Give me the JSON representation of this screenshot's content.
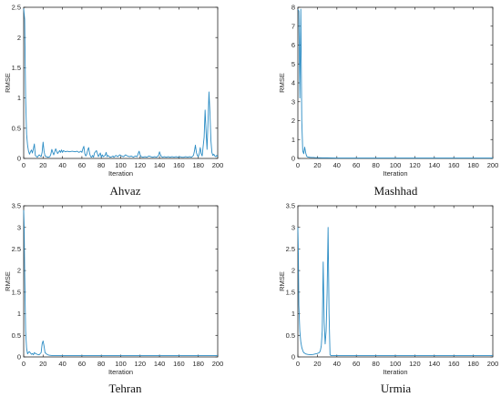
{
  "colors": {
    "line": "#2b8cc4",
    "axis": "#262626"
  },
  "chart_data": [
    {
      "type": "line",
      "title": "Ahvaz",
      "xlabel": "Iteration",
      "ylabel": "RMSE",
      "xlim": [
        0,
        200
      ],
      "ylim": [
        0,
        2.5
      ],
      "xticks": [
        "0",
        "20",
        "40",
        "60",
        "80",
        "100",
        "120",
        "140",
        "160",
        "180",
        "200"
      ],
      "yticks": [
        "0",
        "0.5",
        "1",
        "1.5",
        "2",
        "2.5"
      ],
      "grid": false,
      "series": [
        {
          "x": [
            0,
            1,
            2,
            3,
            4,
            5,
            6,
            7,
            8,
            9,
            10,
            11,
            12,
            14,
            15,
            16,
            18,
            19,
            20,
            21,
            22,
            25,
            27,
            28,
            29,
            30,
            31,
            33,
            34,
            35,
            37,
            38,
            39,
            40,
            41,
            43,
            45,
            47,
            50,
            53,
            55,
            57,
            59,
            60,
            61,
            62,
            63,
            64,
            65,
            66,
            67,
            68,
            69,
            70,
            71,
            72,
            73,
            75,
            77,
            79,
            80,
            81,
            82,
            84,
            85,
            86,
            87,
            89,
            91,
            92,
            93,
            95,
            97,
            99,
            101,
            103,
            105,
            107,
            109,
            111,
            113,
            115,
            117,
            118,
            119,
            120,
            121,
            123,
            125,
            127,
            129,
            131,
            133,
            135,
            137,
            139,
            140,
            141,
            142,
            143,
            145,
            147,
            149,
            151,
            153,
            155,
            157,
            159,
            161,
            163,
            165,
            167,
            169,
            171,
            173,
            175,
            176,
            177,
            178,
            179,
            180,
            181,
            182,
            183,
            184,
            185,
            186,
            187,
            188,
            189,
            190,
            191,
            192,
            193,
            194,
            195,
            196,
            197,
            198,
            199,
            200
          ],
          "y": [
            2.48,
            2.3,
            1.0,
            0.4,
            0.22,
            0.12,
            0.07,
            0.11,
            0.14,
            0.09,
            0.16,
            0.24,
            0.05,
            0.02,
            0.04,
            0.06,
            0.03,
            0.1,
            0.27,
            0.12,
            0.04,
            0.02,
            0.03,
            0.07,
            0.15,
            0.1,
            0.06,
            0.16,
            0.12,
            0.08,
            0.13,
            0.1,
            0.14,
            0.1,
            0.13,
            0.11,
            0.12,
            0.11,
            0.12,
            0.11,
            0.12,
            0.1,
            0.12,
            0.1,
            0.16,
            0.2,
            0.08,
            0.04,
            0.07,
            0.14,
            0.18,
            0.08,
            0.03,
            0.02,
            0.05,
            0.02,
            0.09,
            0.13,
            0.03,
            0.09,
            0.02,
            0.06,
            0.03,
            0.05,
            0.1,
            0.03,
            0.05,
            0.02,
            0.03,
            0.04,
            0.02,
            0.05,
            0.03,
            0.06,
            0.04,
            0.03,
            0.06,
            0.04,
            0.03,
            0.04,
            0.02,
            0.04,
            0.03,
            0.08,
            0.12,
            0.06,
            0.03,
            0.02,
            0.03,
            0.02,
            0.04,
            0.03,
            0.02,
            0.03,
            0.02,
            0.05,
            0.11,
            0.06,
            0.03,
            0.02,
            0.03,
            0.02,
            0.03,
            0.02,
            0.03,
            0.02,
            0.03,
            0.02,
            0.03,
            0.02,
            0.02,
            0.03,
            0.02,
            0.03,
            0.02,
            0.05,
            0.12,
            0.22,
            0.1,
            0.05,
            0.03,
            0.08,
            0.18,
            0.08,
            0.04,
            0.2,
            0.35,
            0.8,
            0.45,
            0.15,
            0.6,
            1.1,
            0.75,
            0.3,
            0.1,
            0.05,
            0.07,
            0.04,
            0.03,
            0.05,
            0.03
          ]
        }
      ]
    },
    {
      "type": "line",
      "title": "Mashhad",
      "xlabel": "Iteration",
      "ylabel": "RMSE",
      "xlim": [
        0,
        200
      ],
      "ylim": [
        0,
        8
      ],
      "xticks": [
        "0",
        "20",
        "40",
        "60",
        "80",
        "100",
        "120",
        "140",
        "160",
        "180",
        "200"
      ],
      "yticks": [
        "0",
        "1",
        "2",
        "3",
        "4",
        "5",
        "6",
        "7",
        "8"
      ],
      "grid": false,
      "series": [
        {
          "x": [
            0,
            1,
            2,
            3,
            4,
            5,
            6,
            7,
            8,
            9,
            10,
            12,
            14,
            16,
            18,
            20,
            25,
            30,
            40,
            60,
            80,
            100,
            120,
            140,
            160,
            180,
            200
          ],
          "y": [
            7.9,
            7.8,
            3.2,
            7.9,
            2.0,
            0.4,
            0.25,
            0.6,
            0.3,
            0.12,
            0.08,
            0.06,
            0.05,
            0.05,
            0.04,
            0.04,
            0.03,
            0.03,
            0.02,
            0.02,
            0.02,
            0.02,
            0.02,
            0.02,
            0.02,
            0.02,
            0.02
          ]
        }
      ]
    },
    {
      "type": "line",
      "title": "Tehran",
      "xlabel": "Iteration",
      "ylabel": "RMSE",
      "xlim": [
        0,
        200
      ],
      "ylim": [
        0,
        3.5
      ],
      "xticks": [
        "0",
        "20",
        "40",
        "60",
        "80",
        "100",
        "120",
        "140",
        "160",
        "180",
        "200"
      ],
      "yticks": [
        "0",
        "0.5",
        "1",
        "1.5",
        "2",
        "2.5",
        "3",
        "3.5"
      ],
      "grid": false,
      "series": [
        {
          "x": [
            0,
            0.5,
            1,
            2,
            3,
            4,
            5,
            6,
            7,
            8,
            9,
            10,
            11,
            12,
            14,
            16,
            18,
            19,
            20,
            21,
            22,
            24,
            26,
            30,
            40,
            60,
            80,
            100,
            120,
            140,
            160,
            180,
            200
          ],
          "y": [
            3.4,
            3.0,
            2.0,
            0.6,
            0.2,
            0.07,
            0.11,
            0.12,
            0.09,
            0.06,
            0.08,
            0.05,
            0.1,
            0.08,
            0.06,
            0.05,
            0.1,
            0.3,
            0.37,
            0.25,
            0.1,
            0.06,
            0.04,
            0.03,
            0.03,
            0.03,
            0.03,
            0.03,
            0.03,
            0.03,
            0.03,
            0.03,
            0.03
          ]
        }
      ]
    },
    {
      "type": "line",
      "title": "Urmia",
      "xlabel": "Iteration",
      "ylabel": "RMSE",
      "xlim": [
        0,
        200
      ],
      "ylim": [
        0,
        3.5
      ],
      "xticks": [
        "0",
        "20",
        "40",
        "60",
        "80",
        "100",
        "120",
        "140",
        "160",
        "180",
        "200"
      ],
      "yticks": [
        "0",
        "0.5",
        "1",
        "1.5",
        "2",
        "2.5",
        "3",
        "3.5"
      ],
      "grid": false,
      "series": [
        {
          "x": [
            0,
            0.5,
            1,
            2,
            3,
            4,
            5,
            6,
            8,
            10,
            12,
            14,
            16,
            18,
            20,
            22,
            23,
            24,
            25,
            26,
            27,
            28,
            29,
            30,
            31,
            32,
            33,
            34,
            40,
            60,
            80,
            100,
            120,
            140,
            160,
            180,
            200
          ],
          "y": [
            3.0,
            2.4,
            1.2,
            0.6,
            0.35,
            0.22,
            0.15,
            0.1,
            0.07,
            0.06,
            0.055,
            0.055,
            0.06,
            0.07,
            0.08,
            0.1,
            0.14,
            0.25,
            0.6,
            2.2,
            0.8,
            0.3,
            0.6,
            1.5,
            3.0,
            1.0,
            0.05,
            0.03,
            0.03,
            0.03,
            0.03,
            0.03,
            0.03,
            0.03,
            0.03,
            0.03,
            0.03
          ]
        }
      ]
    }
  ]
}
